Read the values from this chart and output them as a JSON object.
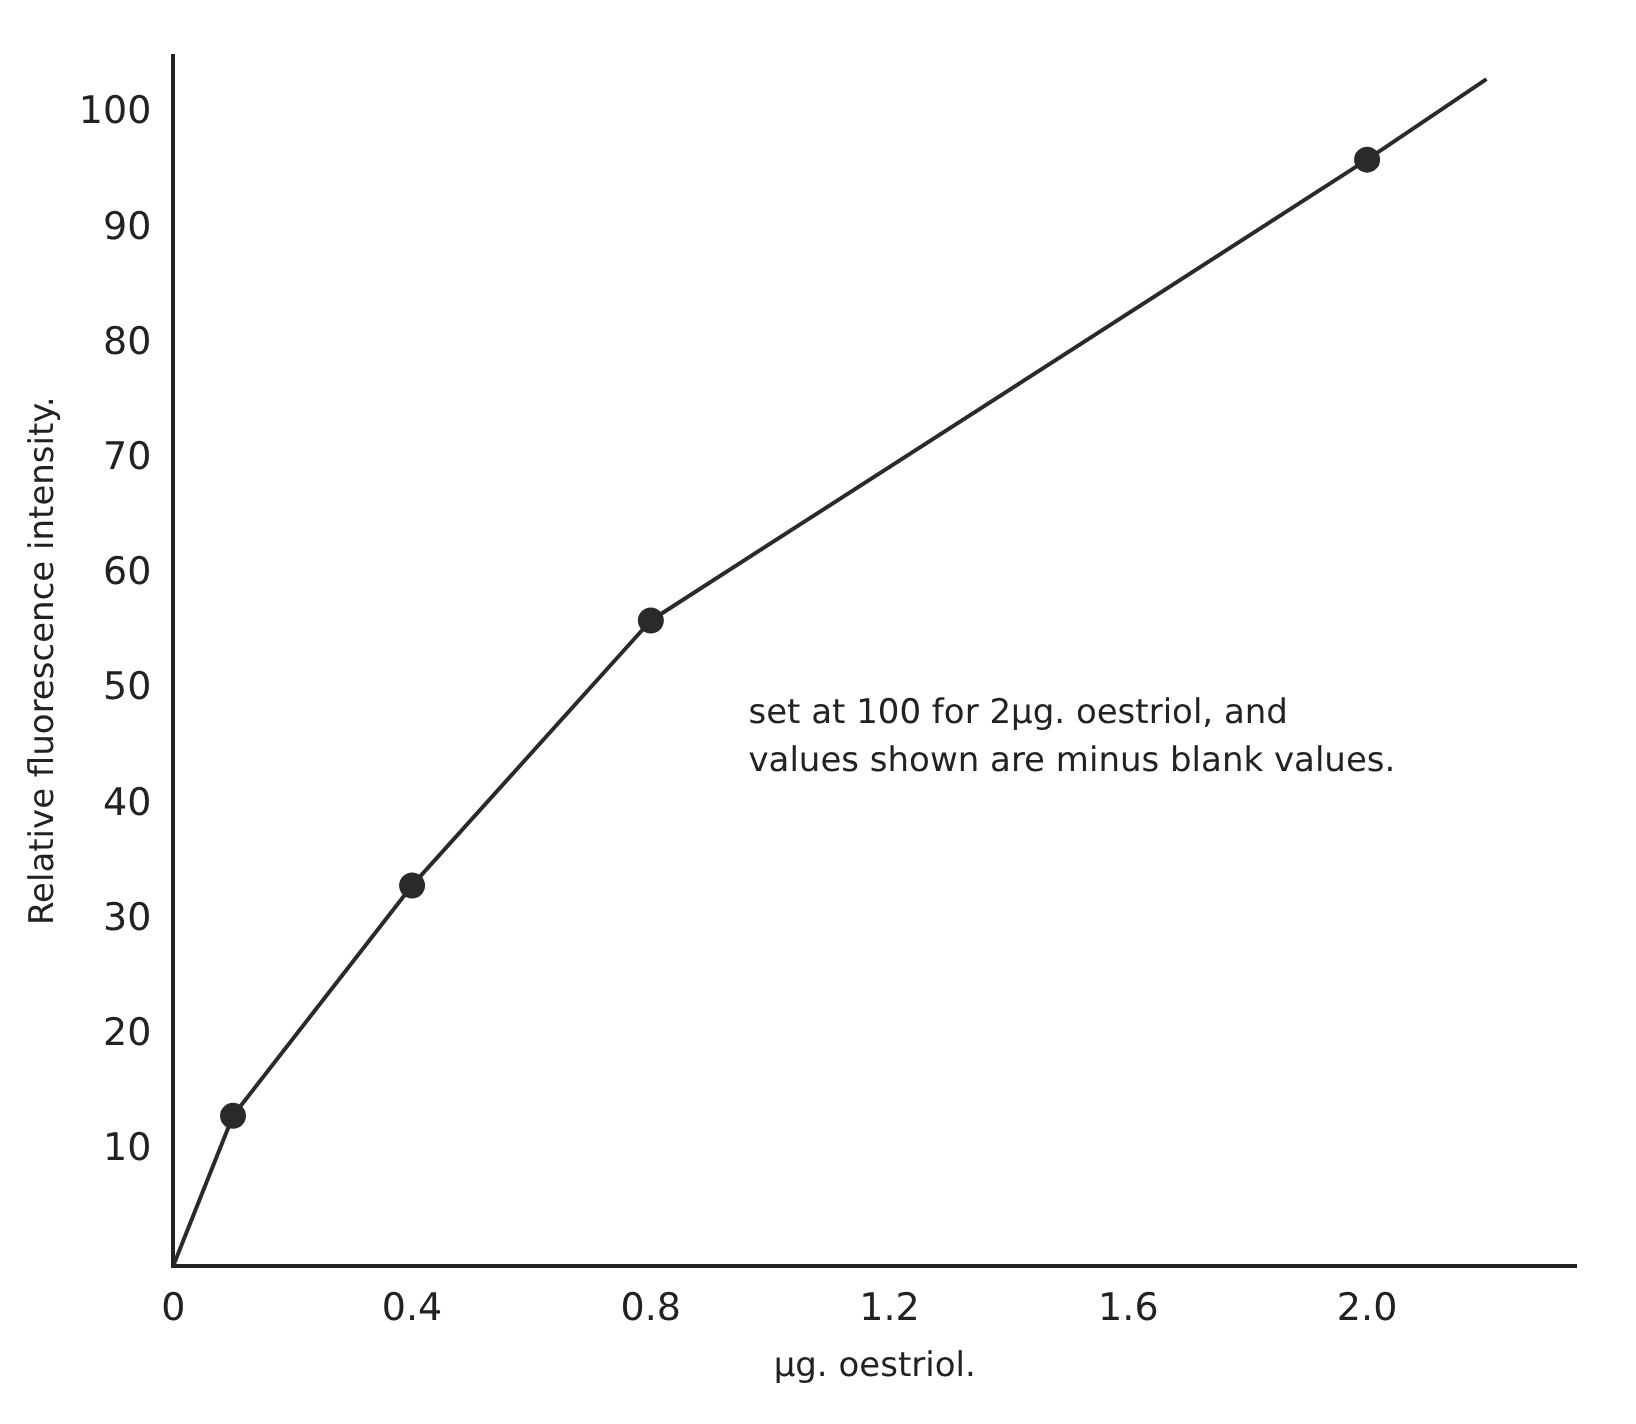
{
  "chart_data": {
    "type": "line",
    "xlabel": "μg. oestriol.",
    "ylabel": "Relative fluorescence intensity.",
    "annotations": [
      "set at 100 for 2μg. oestriol, and values shown are minus blank values."
    ],
    "series": [
      {
        "color": "#2a2a2a",
        "marker": "none",
        "x": [
          0,
          0.1,
          0.4,
          0.8,
          2.0,
          2.2
        ],
        "values": [
          0,
          13,
          33,
          56,
          96,
          103
        ]
      },
      {
        "type": "scatter",
        "color": "#2a2a2a",
        "marker": "circle",
        "x": [
          0.1,
          0.4,
          0.8,
          2.0
        ],
        "values": [
          13,
          33,
          56,
          96
        ]
      }
    ],
    "xlim": [
      0,
      2.35
    ],
    "ylim": [
      0,
      105
    ],
    "xticks": [
      0,
      0.4,
      0.8,
      1.2,
      1.6,
      {
        "value": 2,
        "label": "2.0"
      }
    ],
    "yticks": [
      10,
      20,
      30,
      40,
      50,
      60,
      70,
      80,
      90,
      100
    ],
    "grid": false,
    "legend": false
  }
}
